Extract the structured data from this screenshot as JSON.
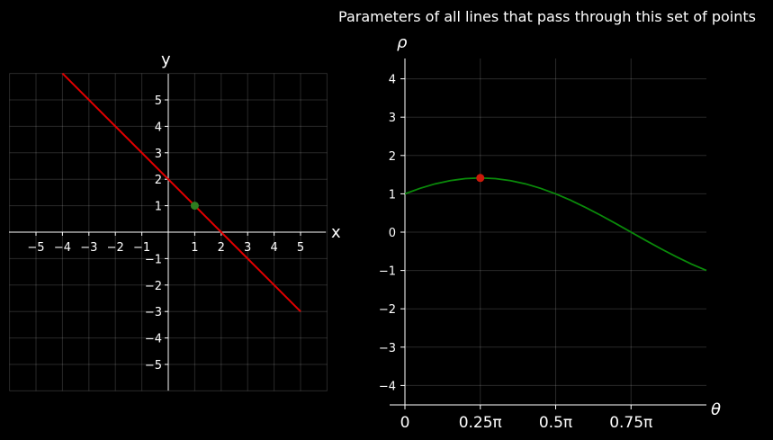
{
  "chart_data": [
    {
      "type": "line",
      "title": "",
      "xlabel": "x",
      "ylabel": "y",
      "xlim": [
        -6,
        6
      ],
      "ylim": [
        -6,
        6
      ],
      "grid": true,
      "xticks": [
        -5,
        -4,
        -3,
        -2,
        -1,
        1,
        2,
        3,
        4,
        5
      ],
      "yticks": [
        -5,
        -4,
        -3,
        -2,
        -1,
        1,
        2,
        3,
        4,
        5
      ],
      "tick_labels_x": [
        "−5",
        "−4",
        "−3",
        "−2",
        "−1",
        "1",
        "2",
        "3",
        "4",
        "5"
      ],
      "tick_labels_y": [
        "−5",
        "−4",
        "−3",
        "−2",
        "−1",
        "1",
        "2",
        "3",
        "4",
        "5"
      ],
      "series": [
        {
          "type": "line",
          "x": [
            -4,
            5
          ],
          "y": [
            6,
            -3
          ],
          "color": "#e00000"
        }
      ],
      "points": [
        {
          "x": 1,
          "y": 1,
          "color": "#2e7d1f"
        }
      ]
    },
    {
      "type": "line",
      "title": "Parameters of all lines that pass through this set of points",
      "xlabel": "θ",
      "ylabel": "ρ",
      "xlim": [
        -0.02,
        1.0
      ],
      "ylim": [
        -4.5,
        4.5
      ],
      "x_unit": "π",
      "grid": true,
      "xticks": [
        0,
        0.25,
        0.5,
        0.75
      ],
      "xtick_labels": [
        "0",
        "0.25π",
        "0.5π",
        "0.75π"
      ],
      "yticks": [
        -4,
        -3,
        -2,
        -1,
        0,
        1,
        2,
        3,
        4
      ],
      "ytick_labels": [
        "−4",
        "−3",
        "−2",
        "−1",
        "0",
        "1",
        "2",
        "3",
        "4"
      ],
      "series": [
        {
          "type": "line",
          "color": "#0a8a0a",
          "x": [
            0,
            0.05,
            0.1,
            0.15,
            0.2,
            0.25,
            0.3,
            0.35,
            0.4,
            0.45,
            0.5,
            0.55,
            0.6,
            0.65,
            0.7,
            0.75,
            0.8,
            0.85,
            0.9,
            0.95,
            1.0
          ],
          "y": [
            1.0,
            1.143,
            1.26,
            1.345,
            1.397,
            1.414,
            1.397,
            1.345,
            1.26,
            1.143,
            1.0,
            0.831,
            0.642,
            0.437,
            0.221,
            0.0,
            -0.221,
            -0.437,
            -0.642,
            -0.831,
            -1.0
          ]
        }
      ],
      "points": [
        {
          "x": 0.25,
          "y": 1.414,
          "color": "#cc1a0a"
        }
      ]
    }
  ]
}
